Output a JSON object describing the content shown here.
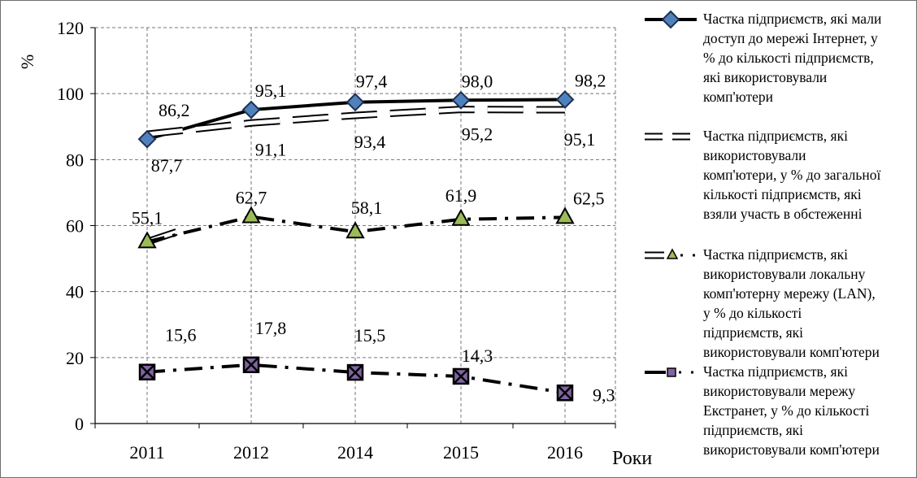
{
  "chart_data": {
    "type": "line",
    "categories": [
      "2011",
      "2012",
      "2014",
      "2015",
      "2016"
    ],
    "xlabel": "Роки",
    "ylabel": "%",
    "ylim": [
      0,
      120
    ],
    "yticks": [
      "0",
      "20",
      "40",
      "60",
      "80",
      "100",
      "120"
    ],
    "grid": true,
    "legend_position": "right",
    "series": [
      {
        "name": "Частка підприємств, які мали доступ до мережі Інтернет, у % до кількості  підприємств, які використовували комп'ютери",
        "values": [
          86.2,
          95.1,
          97.4,
          98.0,
          98.2
        ],
        "labels": [
          "86,2",
          "95,1",
          "97,4",
          "98,0",
          "98,2"
        ],
        "style": "solid",
        "marker": "diamond",
        "color": "#000000",
        "marker_color": "#4f81bd"
      },
      {
        "name": "Частка підприємств, які використовували комп'ютери, у % до загальної кількості підприємств, які взяли участь в обстеженні",
        "values": [
          87.7,
          91.1,
          93.4,
          95.2,
          95.1
        ],
        "labels": [
          "87,7",
          "91,1",
          "93,4",
          "95,2",
          "95,1"
        ],
        "style": "long-dash",
        "marker": "none",
        "color": "#000000"
      },
      {
        "name": "Частка підприємств, які використовували локальну комп'ютерну мережу (LAN), у % до кількості підприємств, які використовували комп'ютери",
        "values": [
          55.1,
          62.7,
          58.1,
          61.9,
          62.5
        ],
        "labels": [
          "55,1",
          "62,7",
          "58,1",
          "61,9",
          "62,5"
        ],
        "style": "dash-dot",
        "marker": "triangle",
        "color": "#000000",
        "marker_color": "#9bbb59"
      },
      {
        "name": "Частка підприємств, які використовували мережу Екстранет, у % до кількості підприємств, які використовували комп'ютери",
        "values": [
          15.6,
          17.8,
          15.5,
          14.3,
          9.3
        ],
        "labels": [
          "15,6",
          "17,8",
          "15,5",
          "14,3",
          "9,3"
        ],
        "style": "dash-dot",
        "marker": "x-square",
        "color": "#000000",
        "marker_color": "#8064a2"
      }
    ]
  }
}
